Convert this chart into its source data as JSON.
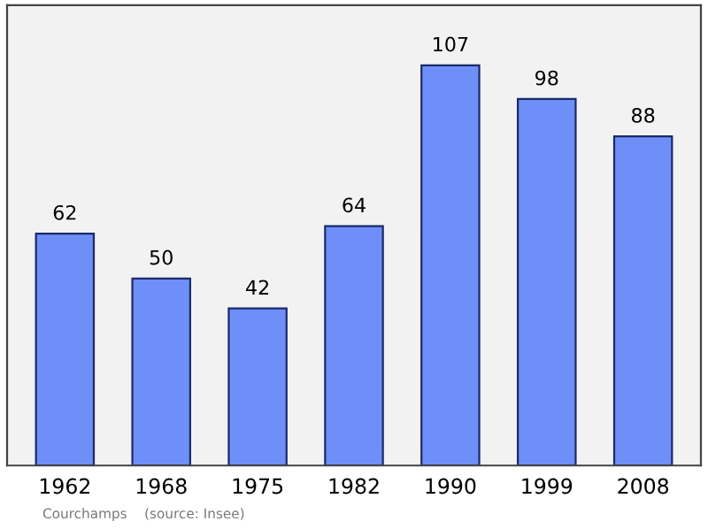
{
  "chart_data": {
    "type": "bar",
    "categories": [
      "1962",
      "1968",
      "1975",
      "1982",
      "1990",
      "1999",
      "2008"
    ],
    "values": [
      62,
      50,
      42,
      64,
      107,
      98,
      88
    ],
    "color": "#6f8ff8",
    "data_labels": true,
    "grid": false,
    "annotations": [
      "Courchamps    (source: Insee)"
    ]
  }
}
